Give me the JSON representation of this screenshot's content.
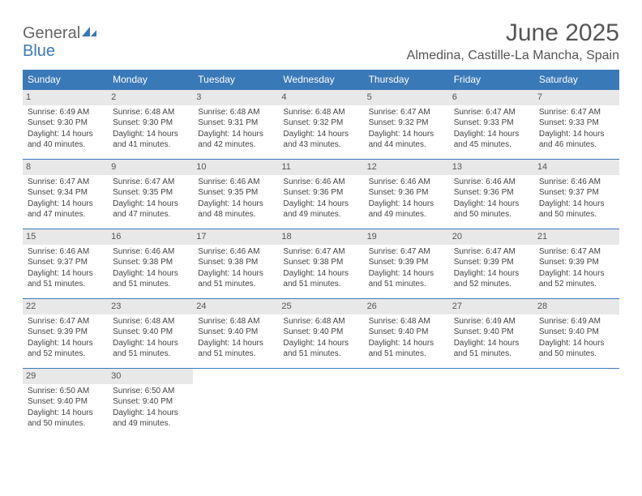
{
  "brand": {
    "general": "General",
    "blue": "Blue"
  },
  "title": "June 2025",
  "location": "Almedina, Castille-La Mancha, Spain",
  "colors": {
    "header_bg": "#3a79b7",
    "header_fg": "#ffffff",
    "daynum_bg": "#e8e8e8",
    "text": "#444444",
    "rule": "#3a79b7"
  },
  "calendar": {
    "columns": [
      "Sunday",
      "Monday",
      "Tuesday",
      "Wednesday",
      "Thursday",
      "Friday",
      "Saturday"
    ],
    "weeks": [
      [
        {
          "day": 1,
          "sunrise": "6:49 AM",
          "sunset": "9:30 PM",
          "daylight": "14 hours and 40 minutes."
        },
        {
          "day": 2,
          "sunrise": "6:48 AM",
          "sunset": "9:30 PM",
          "daylight": "14 hours and 41 minutes."
        },
        {
          "day": 3,
          "sunrise": "6:48 AM",
          "sunset": "9:31 PM",
          "daylight": "14 hours and 42 minutes."
        },
        {
          "day": 4,
          "sunrise": "6:48 AM",
          "sunset": "9:32 PM",
          "daylight": "14 hours and 43 minutes."
        },
        {
          "day": 5,
          "sunrise": "6:47 AM",
          "sunset": "9:32 PM",
          "daylight": "14 hours and 44 minutes."
        },
        {
          "day": 6,
          "sunrise": "6:47 AM",
          "sunset": "9:33 PM",
          "daylight": "14 hours and 45 minutes."
        },
        {
          "day": 7,
          "sunrise": "6:47 AM",
          "sunset": "9:33 PM",
          "daylight": "14 hours and 46 minutes."
        }
      ],
      [
        {
          "day": 8,
          "sunrise": "6:47 AM",
          "sunset": "9:34 PM",
          "daylight": "14 hours and 47 minutes."
        },
        {
          "day": 9,
          "sunrise": "6:47 AM",
          "sunset": "9:35 PM",
          "daylight": "14 hours and 47 minutes."
        },
        {
          "day": 10,
          "sunrise": "6:46 AM",
          "sunset": "9:35 PM",
          "daylight": "14 hours and 48 minutes."
        },
        {
          "day": 11,
          "sunrise": "6:46 AM",
          "sunset": "9:36 PM",
          "daylight": "14 hours and 49 minutes."
        },
        {
          "day": 12,
          "sunrise": "6:46 AM",
          "sunset": "9:36 PM",
          "daylight": "14 hours and 49 minutes."
        },
        {
          "day": 13,
          "sunrise": "6:46 AM",
          "sunset": "9:36 PM",
          "daylight": "14 hours and 50 minutes."
        },
        {
          "day": 14,
          "sunrise": "6:46 AM",
          "sunset": "9:37 PM",
          "daylight": "14 hours and 50 minutes."
        }
      ],
      [
        {
          "day": 15,
          "sunrise": "6:46 AM",
          "sunset": "9:37 PM",
          "daylight": "14 hours and 51 minutes."
        },
        {
          "day": 16,
          "sunrise": "6:46 AM",
          "sunset": "9:38 PM",
          "daylight": "14 hours and 51 minutes."
        },
        {
          "day": 17,
          "sunrise": "6:46 AM",
          "sunset": "9:38 PM",
          "daylight": "14 hours and 51 minutes."
        },
        {
          "day": 18,
          "sunrise": "6:47 AM",
          "sunset": "9:38 PM",
          "daylight": "14 hours and 51 minutes."
        },
        {
          "day": 19,
          "sunrise": "6:47 AM",
          "sunset": "9:39 PM",
          "daylight": "14 hours and 51 minutes."
        },
        {
          "day": 20,
          "sunrise": "6:47 AM",
          "sunset": "9:39 PM",
          "daylight": "14 hours and 52 minutes."
        },
        {
          "day": 21,
          "sunrise": "6:47 AM",
          "sunset": "9:39 PM",
          "daylight": "14 hours and 52 minutes."
        }
      ],
      [
        {
          "day": 22,
          "sunrise": "6:47 AM",
          "sunset": "9:39 PM",
          "daylight": "14 hours and 52 minutes."
        },
        {
          "day": 23,
          "sunrise": "6:48 AM",
          "sunset": "9:40 PM",
          "daylight": "14 hours and 51 minutes."
        },
        {
          "day": 24,
          "sunrise": "6:48 AM",
          "sunset": "9:40 PM",
          "daylight": "14 hours and 51 minutes."
        },
        {
          "day": 25,
          "sunrise": "6:48 AM",
          "sunset": "9:40 PM",
          "daylight": "14 hours and 51 minutes."
        },
        {
          "day": 26,
          "sunrise": "6:48 AM",
          "sunset": "9:40 PM",
          "daylight": "14 hours and 51 minutes."
        },
        {
          "day": 27,
          "sunrise": "6:49 AM",
          "sunset": "9:40 PM",
          "daylight": "14 hours and 51 minutes."
        },
        {
          "day": 28,
          "sunrise": "6:49 AM",
          "sunset": "9:40 PM",
          "daylight": "14 hours and 50 minutes."
        }
      ],
      [
        {
          "day": 29,
          "sunrise": "6:50 AM",
          "sunset": "9:40 PM",
          "daylight": "14 hours and 50 minutes."
        },
        {
          "day": 30,
          "sunrise": "6:50 AM",
          "sunset": "9:40 PM",
          "daylight": "14 hours and 49 minutes."
        },
        null,
        null,
        null,
        null,
        null
      ]
    ]
  },
  "labels": {
    "sunrise_prefix": "Sunrise: ",
    "sunset_prefix": "Sunset: ",
    "daylight_prefix": "Daylight: "
  }
}
